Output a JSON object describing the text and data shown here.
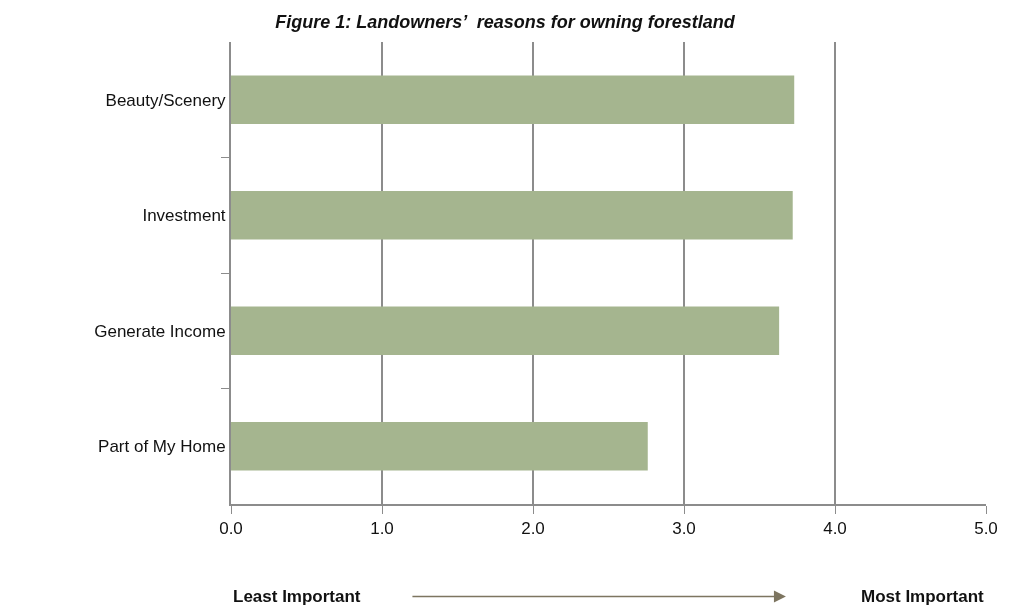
{
  "chart_data": {
    "type": "bar",
    "orientation": "horizontal",
    "title": "Figure 1: Landowners’  reasons for owning forestland",
    "categories": [
      "Beauty/Scenery",
      "Investment",
      "Generate Income",
      "Part of My Home"
    ],
    "values": [
      3.73,
      3.72,
      3.63,
      2.76
    ],
    "color": "#a5b58f",
    "xlim": [
      0,
      5
    ],
    "xticks": [
      {
        "value": 0,
        "label": "0.0"
      },
      {
        "value": 1,
        "label": "1.0"
      },
      {
        "value": 2,
        "label": "2.0"
      },
      {
        "value": 3,
        "label": "3.0"
      },
      {
        "value": 4,
        "label": "4.0"
      },
      {
        "value": 5,
        "label": "5.0"
      }
    ],
    "grid": "x",
    "annotations": [
      "Least Important",
      "Most Important"
    ]
  }
}
